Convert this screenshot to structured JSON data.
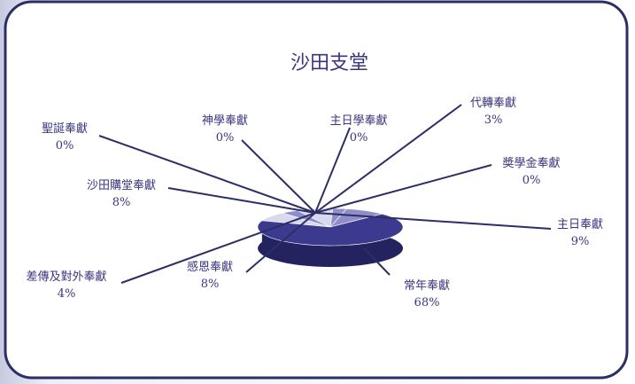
{
  "chart_data": {
    "type": "pie",
    "title": "沙田支堂",
    "slices": [
      {
        "label": "常年奉獻",
        "pct_text": "68%",
        "value": 68
      },
      {
        "label": "主日奉獻",
        "pct_text": "9%",
        "value": 9
      },
      {
        "label": "奬學金奉獻",
        "pct_text": "0%",
        "value": 0
      },
      {
        "label": "代轉奉獻",
        "pct_text": "3%",
        "value": 3
      },
      {
        "label": "主日學奉獻",
        "pct_text": "0%",
        "value": 0
      },
      {
        "label": "神學奉獻",
        "pct_text": "0%",
        "value": 0
      },
      {
        "label": "聖誕奉獻",
        "pct_text": "0%",
        "value": 0
      },
      {
        "label": "沙田購堂奉獻",
        "pct_text": "8%",
        "value": 8
      },
      {
        "label": "差傳及對外奉獻",
        "pct_text": "4%",
        "value": 4
      },
      {
        "label": "感恩奉獻",
        "pct_text": "8%",
        "value": 8
      }
    ],
    "style": "3d-pie",
    "colors": {
      "primary": "#3b3a8e",
      "dark": "#24235f",
      "light": "#d9d9ee",
      "mid": "#8f8ec9",
      "text": "#3a3580",
      "border": "#2b2f66"
    }
  }
}
